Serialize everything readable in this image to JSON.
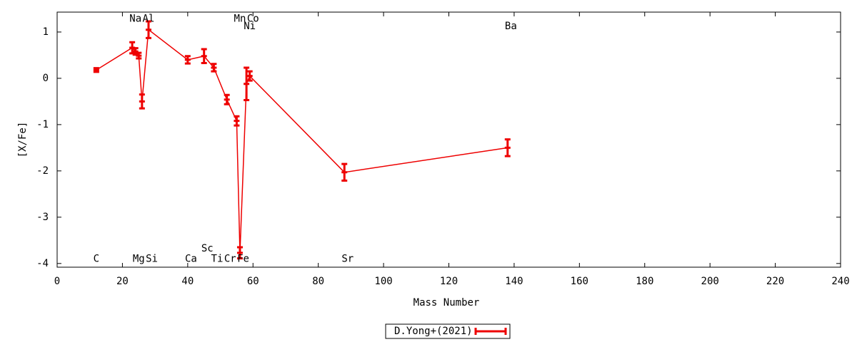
{
  "chart_data": {
    "type": "line",
    "x_label": "Mass Number",
    "y_label": "[X/Fe]",
    "xlim": [
      0,
      240
    ],
    "ylim": [
      -4.08,
      1.43
    ],
    "xticks": [
      0,
      20,
      40,
      60,
      80,
      100,
      120,
      140,
      160,
      180,
      200,
      220,
      240
    ],
    "yticks": [
      -4,
      -3,
      -2,
      -1,
      0,
      1
    ],
    "legend": "bottom",
    "series": [
      {
        "name": "D.Yong+(2021)",
        "color": "#ee0000",
        "x": [
          12,
          23,
          24,
          25,
          26,
          28,
          40,
          45,
          48,
          52,
          55,
          56,
          58,
          59,
          88,
          138
        ],
        "values": [
          0.18,
          0.66,
          0.58,
          0.49,
          -0.5,
          1.05,
          0.4,
          0.48,
          0.23,
          -0.46,
          -0.92,
          -3.77,
          -0.12,
          0.05,
          -2.03,
          -1.5
        ],
        "errors": [
          0.04,
          0.12,
          0.07,
          0.06,
          0.15,
          0.18,
          0.08,
          0.15,
          0.08,
          0.1,
          0.1,
          0.12,
          0.35,
          0.1,
          0.18,
          0.18
        ]
      }
    ],
    "annotations": [
      {
        "text": "Na",
        "x": 24,
        "y": 1.28
      },
      {
        "text": "Al",
        "x": 28,
        "y": 1.28
      },
      {
        "text": "Mn",
        "x": 56,
        "y": 1.28
      },
      {
        "text": "Co",
        "x": 60,
        "y": 1.28
      },
      {
        "text": "Ni",
        "x": 59,
        "y": 1.12
      },
      {
        "text": "Ba",
        "x": 139,
        "y": 1.12
      },
      {
        "text": "C",
        "x": 12,
        "y": -3.9
      },
      {
        "text": "Mg",
        "x": 25,
        "y": -3.9
      },
      {
        "text": "Si",
        "x": 29,
        "y": -3.9
      },
      {
        "text": "Ca",
        "x": 41,
        "y": -3.9
      },
      {
        "text": "Sc",
        "x": 46,
        "y": -3.68
      },
      {
        "text": "Ti",
        "x": 49,
        "y": -3.9
      },
      {
        "text": "Cr",
        "x": 53,
        "y": -3.9
      },
      {
        "text": "Fe",
        "x": 57,
        "y": -3.9
      },
      {
        "text": "Sr",
        "x": 89,
        "y": -3.9
      }
    ]
  }
}
